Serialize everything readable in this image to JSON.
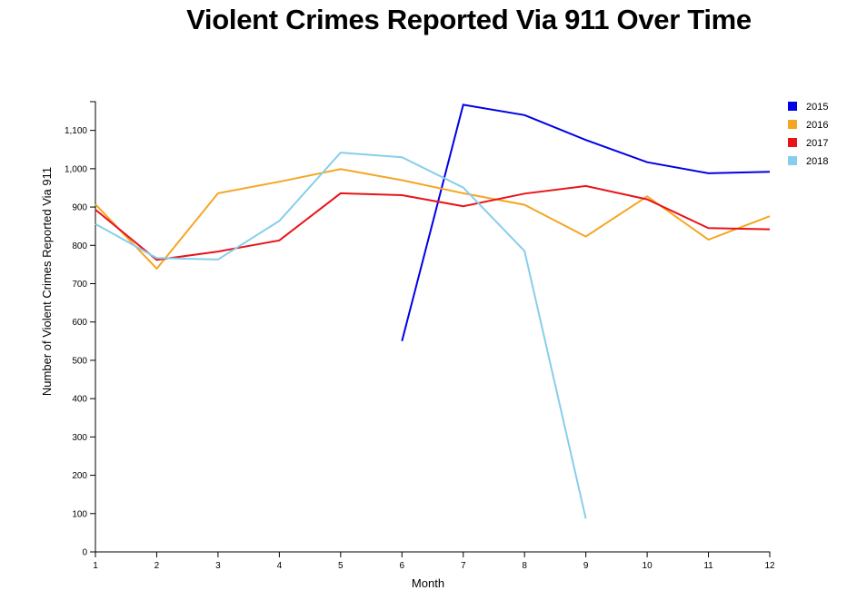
{
  "chart_data": {
    "type": "line",
    "title": "Violent Crimes Reported Via 911 Over Time",
    "xlabel": "Month",
    "ylabel": "Number of Violent Crimes Reported Via 911",
    "xlim": [
      1,
      12
    ],
    "ylim": [
      0,
      1175
    ],
    "x_ticks": [
      1,
      2,
      3,
      4,
      5,
      6,
      7,
      8,
      9,
      10,
      11,
      12
    ],
    "y_ticks": [
      0,
      100,
      200,
      300,
      400,
      500,
      600,
      700,
      800,
      900,
      1000,
      1100
    ],
    "y_tick_labels": [
      "0",
      "100",
      "200",
      "300",
      "400",
      "500",
      "600",
      "700",
      "800",
      "900",
      "1,000",
      "1,100"
    ],
    "grid": false,
    "legend_position": "top-right",
    "series": [
      {
        "name": "2015",
        "color": "#0000e6",
        "x": [
          6,
          7,
          8,
          9,
          10,
          11,
          12
        ],
        "values": [
          550,
          1167,
          1140,
          1075,
          1017,
          988,
          992
        ]
      },
      {
        "name": "2016",
        "color": "#f5a623",
        "x": [
          1,
          2,
          3,
          4,
          5,
          6,
          7,
          8,
          9,
          10,
          11,
          12
        ],
        "values": [
          907,
          739,
          936,
          966,
          999,
          970,
          936,
          906,
          823,
          928,
          815,
          876
        ]
      },
      {
        "name": "2017",
        "color": "#e8141a",
        "x": [
          1,
          2,
          3,
          4,
          5,
          6,
          7,
          8,
          9,
          10,
          11,
          12
        ],
        "values": [
          893,
          762,
          784,
          813,
          936,
          931,
          902,
          935,
          955,
          920,
          845,
          842
        ]
      },
      {
        "name": "2018",
        "color": "#87ceeb",
        "x": [
          1,
          2,
          3,
          4,
          5,
          6,
          7,
          8,
          9
        ],
        "values": [
          856,
          767,
          763,
          864,
          1042,
          1030,
          951,
          785,
          87
        ]
      }
    ]
  }
}
